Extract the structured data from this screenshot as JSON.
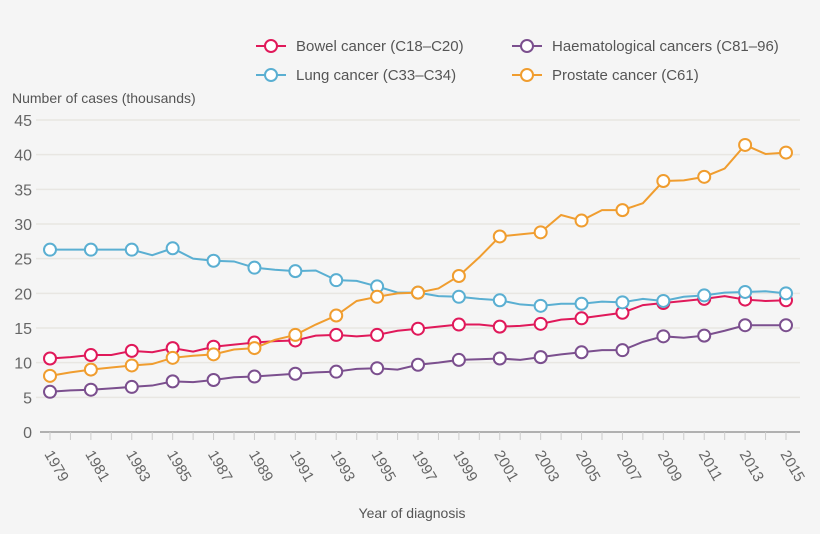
{
  "chart_data": {
    "type": "line",
    "title": "",
    "xlabel": "Year of diagnosis",
    "ylabel": "Number of cases (thousands)",
    "ylim": [
      0,
      45
    ],
    "yticks": [
      "0",
      "5",
      "10",
      "15",
      "20",
      "25",
      "30",
      "35",
      "40",
      "45"
    ],
    "xticks": [
      "1979",
      "1981",
      "1983",
      "1985",
      "1987",
      "1989",
      "1991",
      "1993",
      "1995",
      "1997",
      "1999",
      "2001",
      "2003",
      "2005",
      "2007",
      "2009",
      "2011",
      "2013",
      "2015"
    ],
    "grid": true,
    "legend_position": "top-right",
    "x": [
      1979,
      1980,
      1981,
      1982,
      1983,
      1984,
      1985,
      1986,
      1987,
      1988,
      1989,
      1990,
      1991,
      1992,
      1993,
      1994,
      1995,
      1996,
      1997,
      1998,
      1999,
      2000,
      2001,
      2002,
      2003,
      2004,
      2005,
      2006,
      2007,
      2008,
      2009,
      2010,
      2011,
      2012,
      2013,
      2014,
      2015
    ],
    "series": [
      {
        "name": "Bowel cancer (C18–C20)",
        "color": "#e0195a",
        "values": [
          10.6,
          10.8,
          11.1,
          11.1,
          11.7,
          11.5,
          12.1,
          11.6,
          12.3,
          12.6,
          12.9,
          13.1,
          13.2,
          13.9,
          14.0,
          13.8,
          14.0,
          14.6,
          14.9,
          15.2,
          15.5,
          15.5,
          15.2,
          15.3,
          15.6,
          16.2,
          16.4,
          16.8,
          17.2,
          18.3,
          18.6,
          18.9,
          19.2,
          19.6,
          19.1,
          18.9,
          19.0
        ]
      },
      {
        "name": "Haematological cancers (C81–96)",
        "color": "#7b4f8e",
        "values": [
          5.8,
          6.0,
          6.1,
          6.3,
          6.5,
          6.7,
          7.3,
          7.2,
          7.5,
          7.9,
          8.0,
          8.2,
          8.4,
          8.6,
          8.7,
          9.1,
          9.2,
          9.0,
          9.7,
          10.0,
          10.4,
          10.5,
          10.6,
          10.4,
          10.8,
          11.2,
          11.5,
          11.8,
          11.8,
          13.0,
          13.8,
          13.6,
          13.9,
          14.6,
          15.4,
          15.4,
          15.4
        ]
      },
      {
        "name": "Lung cancer (C33–C34)",
        "color": "#5aafd2",
        "values": [
          26.3,
          26.3,
          26.3,
          26.3,
          26.3,
          25.5,
          26.5,
          25.0,
          24.7,
          24.6,
          23.7,
          23.4,
          23.2,
          23.3,
          21.9,
          21.8,
          21.0,
          20.1,
          20.1,
          19.6,
          19.5,
          19.2,
          19.0,
          18.4,
          18.2,
          18.5,
          18.5,
          18.8,
          18.7,
          19.2,
          18.9,
          19.5,
          19.7,
          20.1,
          20.2,
          20.3,
          20.0
        ]
      },
      {
        "name": "Prostate cancer (C61)",
        "color": "#f09d2f",
        "values": [
          8.1,
          8.6,
          9.0,
          9.3,
          9.6,
          9.8,
          10.7,
          11.0,
          11.2,
          11.9,
          12.1,
          13.3,
          14.0,
          15.5,
          16.8,
          18.9,
          19.5,
          20.0,
          20.1,
          20.7,
          22.5,
          25.2,
          28.2,
          28.5,
          28.8,
          31.3,
          30.5,
          32.0,
          32.0,
          33.0,
          36.2,
          36.3,
          36.8,
          38.0,
          41.4,
          40.1,
          40.3
        ]
      }
    ]
  }
}
